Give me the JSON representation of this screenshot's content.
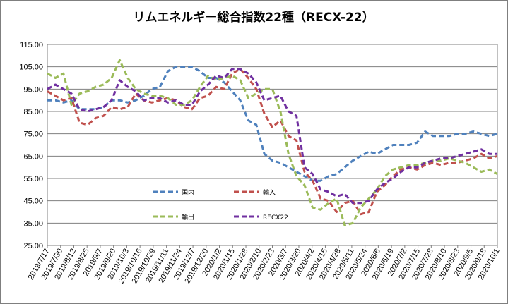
{
  "chart_data": {
    "type": "line",
    "title": "リムエネルギー総合指数22種（RECX-22）",
    "xlabel": "",
    "ylabel": "",
    "ylim": [
      25,
      115
    ],
    "yticks": [
      "25.00",
      "35.00",
      "45.00",
      "55.00",
      "65.00",
      "75.00",
      "85.00",
      "95.00",
      "105.00",
      "115.00"
    ],
    "grid": true,
    "legend_placement": "inside-lower-left",
    "x_tick_labels": [
      "2019/7/17",
      "2019/7/30",
      "2019/8/12",
      "2019/8/25",
      "2019/9/7",
      "2019/9/20",
      "2019/10/3",
      "2019/10/16",
      "2019/10/29",
      "2019/11/11",
      "2019/11/24",
      "2019/12/7",
      "2019/12/20",
      "2020/1/2",
      "2020/1/15",
      "2020/1/28",
      "2020/2/10",
      "2020/2/23",
      "2020/3/7",
      "2020/3/20",
      "2020/4/2",
      "2020/4/15",
      "2020/4/28",
      "2020/5/11",
      "2020/5/24",
      "2020/6/6",
      "2020/6/19",
      "2020/7/2",
      "2020/7/15",
      "2020/7/28",
      "2020/8/10",
      "2020/8/23",
      "2020/9/5",
      "2020/9/18",
      "2020/10/1"
    ],
    "series": [
      {
        "name": "国内",
        "color": "#4f81bd",
        "values": [
          90,
          90,
          89,
          90,
          86,
          86,
          86,
          87,
          90,
          90,
          89,
          90,
          92,
          95,
          96,
          103,
          105,
          105,
          105,
          103,
          100,
          100,
          98,
          94,
          90,
          81,
          79,
          66,
          63,
          62,
          60,
          58,
          56,
          54,
          54,
          56,
          57,
          60,
          63,
          65,
          67,
          66,
          68,
          70,
          70,
          70,
          71,
          76,
          74,
          74,
          74,
          75,
          75,
          76,
          75,
          74,
          75
        ]
      },
      {
        "name": "輸入",
        "color": "#c0504d",
        "values": [
          94,
          92,
          90,
          91,
          80,
          79,
          82,
          83,
          87,
          86,
          87,
          93,
          90,
          89,
          90,
          91,
          90,
          87,
          86,
          91,
          92,
          96,
          95,
          102,
          104,
          100,
          95,
          84,
          78,
          81,
          74,
          72,
          58,
          54,
          46,
          45,
          40,
          44,
          45,
          39,
          40,
          49,
          52,
          56,
          59,
          60,
          59,
          61,
          62,
          61,
          62,
          62,
          63,
          64,
          66,
          64,
          65
        ]
      },
      {
        "name": "輸出",
        "color": "#9bbb59",
        "values": [
          102,
          100,
          102,
          88,
          93,
          94,
          96,
          97,
          100,
          108,
          100,
          95,
          93,
          92,
          92,
          91,
          88,
          88,
          90,
          96,
          101,
          99,
          100,
          101,
          99,
          91,
          93,
          95,
          95,
          85,
          66,
          56,
          52,
          42,
          41,
          44,
          46,
          34,
          35,
          42,
          46,
          50,
          56,
          59,
          60,
          61,
          61,
          62,
          63,
          63,
          64,
          63,
          62,
          60,
          58,
          59,
          57
        ]
      },
      {
        "name": "RECX22",
        "color": "#7030a0",
        "values": [
          95,
          97,
          95,
          93,
          86,
          85,
          86,
          87,
          90,
          99,
          96,
          94,
          90,
          91,
          91,
          89,
          90,
          88,
          88,
          94,
          97,
          101,
          100,
          104,
          104,
          102,
          98,
          90,
          91,
          92,
          85,
          83,
          60,
          57,
          50,
          49,
          47,
          48,
          44,
          44,
          45,
          50,
          53,
          55,
          58,
          60,
          60,
          62,
          63,
          64,
          64,
          65,
          66,
          67,
          68,
          66,
          66
        ]
      }
    ]
  }
}
